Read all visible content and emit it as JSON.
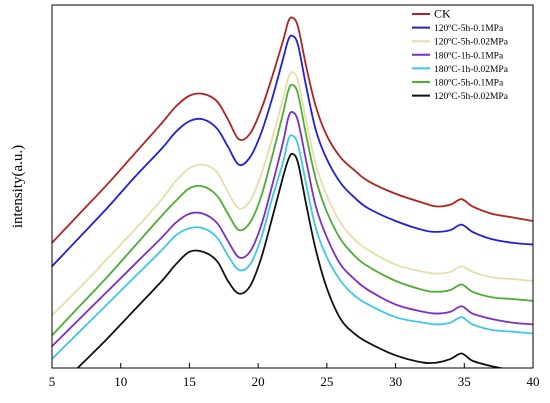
{
  "chart_data": {
    "type": "line",
    "xlabel": "",
    "ylabel": "intensity(a.u.)",
    "xlim": [
      5,
      40
    ],
    "ylim": [
      0,
      100
    ],
    "xticks": [
      5,
      10,
      15,
      20,
      25,
      30,
      35,
      40
    ],
    "grid": false,
    "legend_position": "top-right",
    "series": [
      {
        "name": "CK",
        "color": "#b22222",
        "x": [
          5,
          7,
          9,
          11,
          13,
          14,
          15,
          16,
          17,
          17.8,
          18.6,
          19.4,
          20.2,
          21,
          21.8,
          22.2,
          22.5,
          22.9,
          23.5,
          24.2,
          25,
          26,
          27,
          28,
          30,
          32,
          33,
          34,
          34.8,
          35.6,
          37,
          38.5,
          40
        ],
        "y": [
          34.5,
          42.5,
          50.5,
          59,
          67.5,
          72,
          75,
          75.5,
          73.5,
          68.5,
          63,
          64.5,
          71,
          80,
          90,
          95.5,
          96.5,
          94,
          83,
          72,
          64,
          58,
          54.5,
          51.5,
          48,
          45.5,
          44.5,
          45,
          46.5,
          44.5,
          42.5,
          41.5,
          40.5
        ]
      },
      {
        "name": "120ºC-5h-0.1MPa",
        "color": "#1f1fe0",
        "x": [
          5,
          7,
          9,
          11,
          13,
          14,
          15,
          16,
          17,
          17.8,
          18.6,
          19.4,
          20.2,
          21,
          21.8,
          22.2,
          22.5,
          22.9,
          23.5,
          24.2,
          25,
          26,
          27,
          28,
          30,
          32,
          33,
          34,
          34.8,
          35.6,
          37,
          38.5,
          40
        ],
        "y": [
          28,
          36,
          44,
          52.5,
          60.5,
          65,
          68,
          68.5,
          66,
          61,
          56,
          58,
          64.5,
          74,
          85,
          90.5,
          91.5,
          89,
          77.5,
          65.5,
          57.5,
          51,
          47,
          44,
          40.5,
          38,
          37.5,
          38,
          39.5,
          37.5,
          35.5,
          34.5,
          34
        ]
      },
      {
        "name": "120ºC-5h-0.02MPa",
        "color": "#e8dcaa",
        "x": [
          5,
          7,
          9,
          11,
          13,
          14,
          15,
          16,
          17,
          17.8,
          18.6,
          19.4,
          20.2,
          21,
          21.8,
          22.2,
          22.5,
          22.9,
          23.5,
          24.2,
          25,
          26,
          27,
          28,
          30,
          32,
          33,
          34,
          34.8,
          35.6,
          37,
          38.5,
          40
        ],
        "y": [
          14.5,
          22,
          30,
          38,
          46.5,
          51.5,
          55,
          56,
          54,
          48.5,
          44,
          46,
          53,
          63,
          74,
          80,
          81.5,
          79,
          68,
          56,
          47.5,
          40,
          35.5,
          32.5,
          28.5,
          26.5,
          26,
          26.5,
          28,
          26.5,
          25,
          24.5,
          24
        ]
      },
      {
        "name": "180ºC-1h-0.1MPa",
        "color": "#7b2fc8",
        "x": [
          5,
          7,
          9,
          11,
          13,
          14,
          15,
          16,
          17,
          17.8,
          18.6,
          19.4,
          20.2,
          21,
          21.8,
          22.2,
          22.5,
          22.9,
          23.5,
          24.2,
          25,
          26,
          27,
          28,
          30,
          32,
          33,
          34,
          34.8,
          35.6,
          37,
          38.5,
          40
        ],
        "y": [
          6,
          13.5,
          21,
          28.5,
          36,
          40,
          42.5,
          42.5,
          40,
          35,
          30.5,
          32,
          39,
          50,
          62,
          69,
          70.5,
          68,
          57,
          44.5,
          36,
          28.5,
          24.5,
          21.5,
          17.5,
          15.5,
          15,
          15.5,
          17,
          15,
          13.5,
          12.5,
          12
        ]
      },
      {
        "name": "180ºC-1h-0.02MPa",
        "color": "#3cc8e6",
        "x": [
          5,
          7,
          9,
          11,
          13,
          14,
          15,
          16,
          17,
          17.8,
          18.6,
          19.4,
          20.2,
          21,
          21.8,
          22.2,
          22.5,
          22.9,
          23.5,
          24.2,
          25,
          26,
          27,
          28,
          30,
          32,
          33,
          34,
          34.8,
          35.6,
          37,
          38.5,
          40
        ],
        "y": [
          2.5,
          10,
          17.5,
          25,
          32.5,
          36.5,
          38.5,
          38.5,
          36,
          31,
          27,
          28.5,
          35.5,
          46.5,
          56.5,
          63,
          64,
          61.5,
          50.5,
          38.5,
          30.5,
          24,
          20,
          17.5,
          14,
          12.5,
          12,
          12.5,
          14,
          12,
          10.5,
          10,
          9.5
        ]
      },
      {
        "name": "180ºC-5h-0.1MPa",
        "color": "#4caf32",
        "x": [
          5,
          7,
          9,
          11,
          13,
          14,
          15,
          16,
          17,
          17.8,
          18.6,
          19.4,
          20.2,
          21,
          21.8,
          22.2,
          22.5,
          22.9,
          23.5,
          24.2,
          25,
          26,
          27,
          28,
          30,
          32,
          33,
          34,
          34.8,
          35.6,
          37,
          38.5,
          40
        ],
        "y": [
          9,
          17,
          25,
          33.5,
          42,
          46,
          49.5,
          50,
          47.5,
          42.5,
          38,
          40,
          47,
          58,
          70,
          76.5,
          78,
          75.5,
          64,
          52,
          43,
          35.5,
          31,
          28,
          24,
          21.5,
          21,
          21.5,
          23,
          21,
          19.5,
          19,
          18.5
        ]
      },
      {
        "name": "120ºC-5h-0.02MPa",
        "color": "#111111",
        "x": [
          5,
          7,
          9,
          11,
          13,
          14,
          15,
          16,
          17,
          17.8,
          18.6,
          19.4,
          20.2,
          21,
          21.8,
          22.2,
          22.5,
          22.9,
          23.5,
          24.2,
          25,
          26,
          27,
          28,
          30,
          32,
          33,
          34,
          34.8,
          35.6,
          37,
          38.5,
          40
        ],
        "y": [
          -7,
          0.5,
          8,
          16,
          24,
          28.5,
          32,
          32,
          29.5,
          24,
          20.5,
          22.5,
          30,
          41,
          52.5,
          57.5,
          59,
          56.5,
          45,
          32.5,
          22,
          13.5,
          9.5,
          7,
          3.5,
          1.5,
          1.5,
          2.5,
          4,
          2,
          0.5,
          -0.5,
          -1
        ]
      }
    ]
  }
}
